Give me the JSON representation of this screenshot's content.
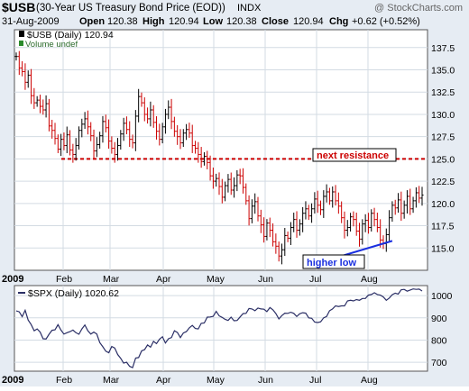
{
  "header": {
    "symbol": "$USB",
    "name": "(30-Year US Treasury Bond Price (EOD))",
    "exchange": "INDX",
    "copyright": "@ StockCharts.com",
    "date": "31-Aug-2009",
    "open_label": "Open",
    "open": "120.38",
    "high_label": "High",
    "high": "120.94",
    "low_label": "Low",
    "low": "120.38",
    "close_label": "Close",
    "close": "120.94",
    "chg_label": "Chg",
    "chg": "+0.62 (+0.52%)"
  },
  "colors": {
    "frame_bg": "#e6ecf3",
    "panel_bg": "#ffffff",
    "grid": "#d3dbe3",
    "up_bar": "#000000",
    "down_bar": "#cc0000",
    "resistance": "#cc0000",
    "trendline": "#1a2fe0",
    "spx_line": "#2b2f66"
  },
  "chart_data": [
    {
      "type": "ohlc",
      "title": "$USB (Daily) 120.94",
      "sublabel": "Volume undef",
      "x_labels": [
        "2009",
        "Feb",
        "Mar",
        "Apr",
        "May",
        "Jun",
        "Jul",
        "Aug"
      ],
      "y_ticks": [
        115.0,
        117.5,
        120.0,
        122.5,
        125.0,
        127.5,
        130.0,
        132.5,
        135.0,
        137.5
      ],
      "ylim": [
        112.5,
        139.5
      ],
      "resistance_level": 125.0,
      "annotations": [
        {
          "text": "next resistance"
        },
        {
          "text": "higher low"
        }
      ],
      "closes": [
        136.5,
        135.2,
        134.8,
        133.6,
        134.4,
        132.1,
        131.3,
        131.6,
        130.9,
        130.5,
        131.2,
        128.7,
        128.2,
        127.3,
        126.1,
        127.2,
        126.5,
        127.7,
        126.0,
        125.5,
        126.5,
        128.2,
        128.9,
        129.5,
        128.6,
        127.6,
        125.9,
        126.6,
        127.6,
        129.2,
        128.5,
        127.0,
        126.2,
        125.5,
        126.5,
        127.8,
        129.0,
        128.3,
        127.2,
        126.8,
        129.8,
        132.0,
        131.3,
        130.0,
        129.5,
        130.5,
        129.1,
        128.1,
        127.2,
        128.6,
        130.0,
        130.8,
        129.2,
        128.1,
        127.5,
        126.8,
        127.9,
        128.3,
        127.9,
        126.5,
        126.2,
        125.5,
        124.7,
        125.3,
        124.6,
        123.1,
        122.5,
        122.8,
        121.9,
        120.7,
        122.0,
        122.7,
        121.5,
        122.0,
        123.2,
        123.1,
        121.8,
        120.3,
        118.3,
        119.7,
        120.2,
        118.6,
        117.6,
        116.3,
        117.8,
        117.0,
        115.7,
        115.2,
        114.1,
        114.8,
        116.4,
        116.1,
        117.3,
        118.2,
        117.0,
        117.7,
        118.9,
        119.4,
        118.6,
        119.4,
        120.5,
        119.8,
        119.3,
        120.8,
        121.3,
        120.3,
        121.3,
        120.3,
        119.7,
        118.4,
        117.0,
        117.3,
        118.5,
        118.2,
        116.9,
        116.0,
        117.7,
        118.1,
        117.3,
        118.9,
        118.2,
        117.3,
        115.9,
        115.5,
        116.5,
        118.4,
        119.8,
        119.5,
        120.4,
        118.9,
        119.8,
        120.8,
        119.4,
        120.3,
        121.2,
        120.6,
        120.94
      ],
      "trendline": {
        "from": [
          103,
          113.5
        ],
        "to": [
          126,
          115.8
        ]
      }
    },
    {
      "type": "line",
      "title": "$SPX (Daily) 1020.62",
      "x_labels": [
        "2009",
        "Feb",
        "Mar",
        "Apr",
        "May",
        "Jun",
        "Jul",
        "Aug"
      ],
      "y_ticks": [
        700,
        800,
        900,
        1000
      ],
      "ylim": [
        660,
        1045
      ],
      "values": [
        931,
        927,
        905,
        934,
        890,
        870,
        842,
        850,
        836,
        806,
        805,
        826,
        844,
        846,
        869,
        845,
        827,
        833,
        838,
        845,
        833,
        826,
        850,
        868,
        842,
        827,
        836,
        827,
        789,
        770,
        750,
        743,
        771,
        764,
        735,
        718,
        696,
        700,
        682,
        676,
        719,
        721,
        751,
        757,
        778,
        768,
        794,
        784,
        804,
        815,
        787,
        806,
        811,
        842,
        834,
        811,
        832,
        838,
        855,
        866,
        852,
        850,
        875,
        877,
        903,
        904,
        907,
        929,
        909,
        902,
        893,
        888,
        903,
        887,
        888,
        904,
        919,
        920,
        942,
        940,
        932,
        944,
        940,
        939,
        928,
        946,
        936,
        919,
        895,
        910,
        921,
        920,
        925,
        920,
        906,
        918,
        923,
        921,
        900,
        898,
        881,
        879,
        882,
        900,
        906,
        932,
        940,
        954,
        951,
        954,
        954,
        976,
        979,
        976,
        982,
        979,
        987,
        987,
        1002,
        1005,
        1013,
        1005,
        1002,
        994,
        979,
        989,
        1004,
        1011,
        1007,
        1026,
        1028,
        1020,
        1025,
        1030,
        1028,
        1029,
        1020.62
      ]
    }
  ]
}
